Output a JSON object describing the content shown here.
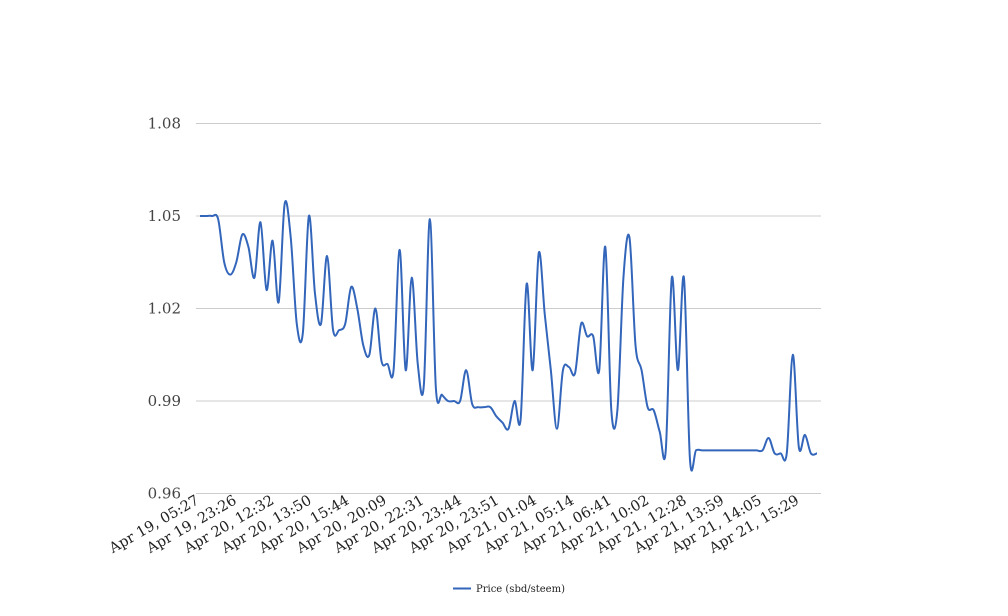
{
  "chart_data": {
    "type": "line",
    "title": "",
    "xlabel": "",
    "ylabel": "",
    "ylim": [
      0.96,
      1.08
    ],
    "yticks": [
      "0.96",
      "0.99",
      "1.02",
      "1.05",
      "1.08"
    ],
    "grid": true,
    "legend_position": "bottom",
    "x_tick_labels": [
      "Apr 19, 05:27",
      "Apr 19, 23:26",
      "Apr 20, 12:32",
      "Apr 20, 13:50",
      "Apr 20, 15:44",
      "Apr 20, 20:09",
      "Apr 20, 22:31",
      "Apr 20, 23:44",
      "Apr 20, 23:51",
      "Apr 21, 01:04",
      "Apr 21, 05:14",
      "Apr 21, 06:41",
      "Apr 21, 10:02",
      "Apr 21, 12:28",
      "Apr 21, 13:59",
      "Apr 21, 14:05",
      "Apr 21, 15:29"
    ],
    "series": [
      {
        "name": "Price (sbd/steem)",
        "color": "#3366bb",
        "values": [
          1.05,
          1.05,
          1.05,
          1.049,
          1.035,
          1.031,
          1.035,
          1.044,
          1.04,
          1.03,
          1.048,
          1.026,
          1.042,
          1.022,
          1.054,
          1.043,
          1.015,
          1.012,
          1.05,
          1.025,
          1.015,
          1.037,
          1.013,
          1.013,
          1.015,
          1.027,
          1.02,
          1.008,
          1.005,
          1.02,
          1.003,
          1.002,
          1.0,
          1.039,
          1.0,
          1.03,
          1.002,
          0.995,
          1.049,
          0.994,
          0.992,
          0.99,
          0.99,
          0.99,
          1.0,
          0.989,
          0.988,
          0.988,
          0.988,
          0.985,
          0.983,
          0.981,
          0.99,
          0.984,
          1.028,
          1.0,
          1.038,
          1.018,
          1.0,
          0.981,
          1.0,
          1.001,
          0.999,
          1.015,
          1.011,
          1.011,
          1.0,
          1.04,
          0.987,
          0.987,
          1.03,
          1.043,
          1.008,
          1.0,
          0.988,
          0.987,
          0.98,
          0.974,
          1.03,
          1.0,
          1.03,
          0.971,
          0.974,
          0.974,
          0.974,
          0.974,
          0.974,
          0.974,
          0.974,
          0.974,
          0.974,
          0.974,
          0.974,
          0.974,
          0.978,
          0.973,
          0.973,
          0.973,
          1.005,
          0.975,
          0.979,
          0.973,
          0.973
        ]
      }
    ]
  }
}
